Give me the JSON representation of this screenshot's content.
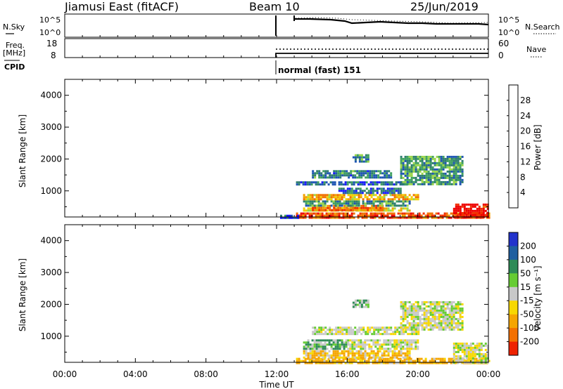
{
  "header": {
    "station": "Jiamusi East (fitACF)",
    "beam": "Beam 10",
    "date": "25/Jun/2019"
  },
  "noise_panel": {
    "left_label": "N.Sky",
    "left_ticks": [
      "10^5",
      "10^0"
    ],
    "right_ticks": [
      "10^5",
      "10^0"
    ],
    "right_label": "N.Search"
  },
  "freq_panel": {
    "left_label_top": "Freq.",
    "left_label_bottom": "[MHz]",
    "left_ticks": [
      "18",
      "8"
    ],
    "right_ticks": [
      "60",
      "0"
    ],
    "right_label": "Nave"
  },
  "cpid": {
    "label": "CPID",
    "value": "normal (fast) 151",
    "start_time": "12:00"
  },
  "colors": {
    "power_scale": [
      "#1a1aff",
      "#1e55b4",
      "#2e7d6e",
      "#3fa060",
      "#9bd64a",
      "#f2d000",
      "#f0a000",
      "#f07000",
      "#f03000",
      "#ee0000"
    ],
    "velocity_scale": [
      "#2233cc",
      "#1f5fa0",
      "#2e8b57",
      "#66cc33",
      "#c8c8c8",
      "#f7d800",
      "#f5a500",
      "#f37000",
      "#ee2200"
    ]
  },
  "chart_data": [
    {
      "type": "heatmap",
      "name": "power",
      "ylabel": "Slant Range [km]",
      "xlabel": "",
      "x_ticks": [
        "00:00",
        "04:00",
        "08:00",
        "12:00",
        "16:00",
        "20:00",
        "00:00"
      ],
      "y_ticks": [
        1000,
        2000,
        3000,
        4000
      ],
      "ylim": [
        180,
        4500
      ],
      "xlim_hours": [
        0,
        24
      ],
      "colorbar": {
        "label": "Power [dB]",
        "ticks": [
          "4",
          "8",
          "12",
          "16",
          "20",
          "24",
          "28"
        ],
        "range": [
          0,
          32
        ]
      },
      "regions": [
        {
          "t0": 13.1,
          "t1": 24,
          "r0": 180,
          "r1": 320,
          "value": 26
        },
        {
          "t0": 22.0,
          "t1": 24,
          "r0": 180,
          "r1": 600,
          "value": 30
        },
        {
          "t0": 13.5,
          "t1": 19.5,
          "r0": 350,
          "r1": 480,
          "value": 18
        },
        {
          "t0": 14.0,
          "t1": 18.0,
          "r0": 420,
          "r1": 560,
          "value": 24
        },
        {
          "t0": 13.5,
          "t1": 19.5,
          "r0": 560,
          "r1": 700,
          "value": 10
        },
        {
          "t0": 13.5,
          "t1": 20.0,
          "r0": 720,
          "r1": 900,
          "value": 20
        },
        {
          "t0": 15.5,
          "t1": 19.0,
          "r0": 950,
          "r1": 1100,
          "value": 6
        },
        {
          "t0": 13.1,
          "t1": 19.5,
          "r0": 1180,
          "r1": 1300,
          "value": 6
        },
        {
          "t0": 14.0,
          "t1": 18.5,
          "r0": 1450,
          "r1": 1650,
          "value": 8
        },
        {
          "t0": 19.0,
          "t1": 22.5,
          "r0": 1200,
          "r1": 2100,
          "value": 10
        },
        {
          "t0": 16.3,
          "t1": 17.2,
          "r0": 1950,
          "r1": 2150,
          "value": 9
        },
        {
          "t0": 12.2,
          "t1": 13.2,
          "r0": 180,
          "r1": 250,
          "value": 5
        }
      ]
    },
    {
      "type": "heatmap",
      "name": "velocity",
      "ylabel": "Slant Range [km]",
      "xlabel": "Time UT",
      "x_ticks": [
        "00:00",
        "04:00",
        "08:00",
        "12:00",
        "16:00",
        "20:00",
        "00:00"
      ],
      "y_ticks": [
        1000,
        2000,
        3000,
        4000
      ],
      "ylim": [
        180,
        4500
      ],
      "xlim_hours": [
        0,
        24
      ],
      "colorbar": {
        "label": "Velocity [m s⁻¹]",
        "ticks": [
          "200",
          "100",
          "50",
          "15",
          "-15",
          "-50",
          "-100",
          "-200"
        ],
        "range": [
          -250,
          250
        ]
      },
      "regions": [
        {
          "t0": 13.1,
          "t1": 24,
          "r0": 180,
          "r1": 320,
          "value": -40
        },
        {
          "t0": 22.0,
          "t1": 24,
          "r0": 180,
          "r1": 800,
          "value": 0
        },
        {
          "t0": 13.5,
          "t1": 19.5,
          "r0": 350,
          "r1": 560,
          "value": -30
        },
        {
          "t0": 13.5,
          "t1": 16.0,
          "r0": 600,
          "r1": 900,
          "value": 30
        },
        {
          "t0": 16.0,
          "t1": 20.0,
          "r0": 600,
          "r1": 900,
          "value": 0
        },
        {
          "t0": 14.0,
          "t1": 20.0,
          "r0": 1100,
          "r1": 1300,
          "value": 0
        },
        {
          "t0": 19.0,
          "t1": 22.5,
          "r0": 1200,
          "r1": 2100,
          "value": 0
        },
        {
          "t0": 16.3,
          "t1": 17.2,
          "r0": 1950,
          "r1": 2150,
          "value": 30
        }
      ]
    }
  ]
}
